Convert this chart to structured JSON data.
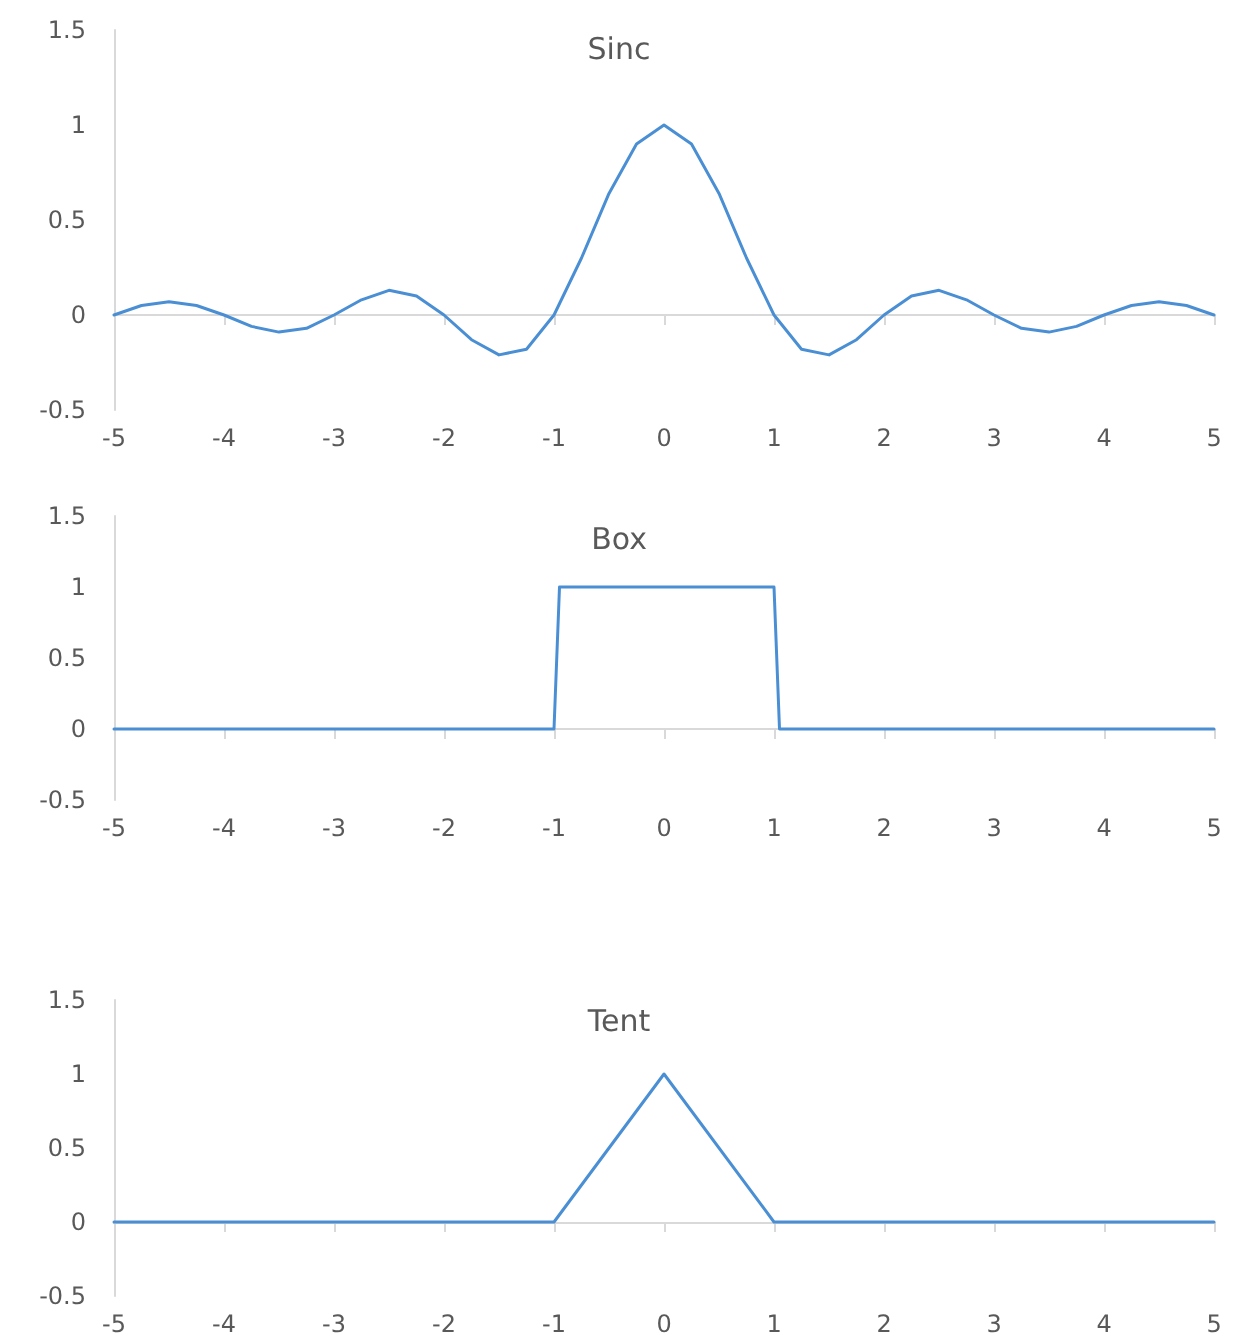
{
  "chart_data": [
    {
      "type": "line",
      "title": "Sinc",
      "color": "#4a8fd4",
      "x": [
        -5,
        -4.75,
        -4.5,
        -4.25,
        -4,
        -3.75,
        -3.5,
        -3.25,
        -3,
        -2.75,
        -2.5,
        -2.25,
        -2,
        -1.75,
        -1.5,
        -1.25,
        -1,
        -0.75,
        -0.5,
        -0.25,
        0,
        0.25,
        0.5,
        0.75,
        1,
        1.25,
        1.5,
        1.75,
        2,
        2.25,
        2.5,
        2.75,
        3,
        3.25,
        3.5,
        3.75,
        4,
        4.25,
        4.5,
        4.75,
        5
      ],
      "values": [
        0,
        0.05,
        0.07,
        0.05,
        0,
        -0.06,
        -0.09,
        -0.07,
        0,
        0.08,
        0.13,
        0.1,
        0,
        -0.13,
        -0.21,
        -0.18,
        0,
        0.3,
        0.64,
        0.9,
        1,
        0.9,
        0.64,
        0.3,
        0,
        -0.18,
        -0.21,
        -0.13,
        0,
        0.1,
        0.13,
        0.08,
        0,
        -0.07,
        -0.09,
        -0.06,
        0,
        0.05,
        0.07,
        0.05,
        0
      ],
      "xlim": [
        -5,
        5
      ],
      "xticks": [
        -5,
        -4,
        -3,
        -2,
        -1,
        0,
        1,
        2,
        3,
        4,
        5
      ],
      "ylim": [
        -0.5,
        1.5
      ],
      "yticks": [
        -0.5,
        0,
        0.5,
        1,
        1.5
      ],
      "marker": "none",
      "line_style": "solid"
    },
    {
      "type": "line",
      "title": "Box",
      "color": "#4a8fd4",
      "x": [
        -5,
        -1,
        -0.95,
        1,
        1.05,
        5
      ],
      "values": [
        0,
        0,
        1,
        1,
        0,
        0
      ],
      "xlim": [
        -5,
        5
      ],
      "xticks": [
        -5,
        -4,
        -3,
        -2,
        -1,
        0,
        1,
        2,
        3,
        4,
        5
      ],
      "ylim": [
        -0.5,
        1.5
      ],
      "yticks": [
        -0.5,
        0,
        0.5,
        1,
        1.5
      ],
      "marker": "none",
      "line_style": "solid"
    },
    {
      "type": "line",
      "title": "Tent",
      "color": "#4a8fd4",
      "x": [
        -5,
        -1,
        0,
        1,
        5
      ],
      "values": [
        0,
        0,
        1,
        0,
        0
      ],
      "xlim": [
        -5,
        5
      ],
      "xticks": [
        -5,
        -4,
        -3,
        -2,
        -1,
        0,
        1,
        2,
        3,
        4,
        5
      ],
      "ylim": [
        -0.5,
        1.5
      ],
      "yticks": [
        -0.5,
        0,
        0.5,
        1,
        1.5
      ],
      "marker": "none",
      "line_style": "solid"
    }
  ]
}
